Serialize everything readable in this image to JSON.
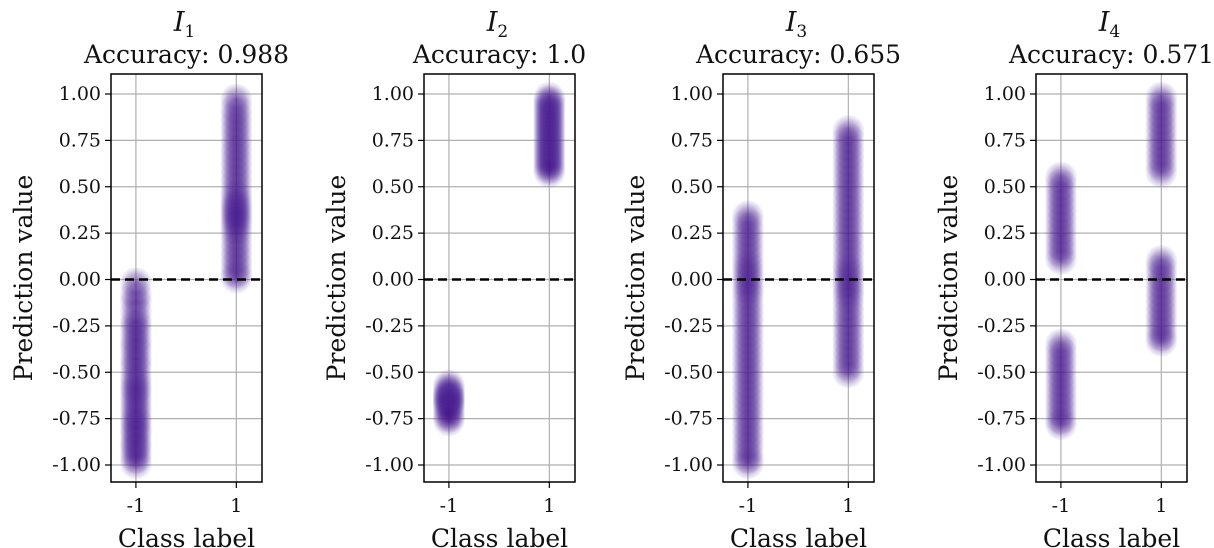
{
  "chart_data": [
    {
      "type": "scatter",
      "title": "I",
      "title_subscript": "1",
      "subtitle": "Accuracy: 0.988",
      "xlabel": "Class label",
      "ylabel": "Prediction value",
      "categories": [
        "-1",
        "1"
      ],
      "ylim": [
        -1.1,
        1.1
      ],
      "yticks": [
        1.0,
        0.75,
        0.5,
        0.25,
        0.0,
        -0.25,
        -0.5,
        -0.75,
        -1.0
      ],
      "ytick_labels": [
        "1.00",
        "0.75",
        "0.50",
        "0.25",
        "0.00",
        "-0.25",
        "-0.50",
        "-0.75",
        "-1.00"
      ],
      "threshold": 0.0,
      "grid": true,
      "series": [
        {
          "category": "-1",
          "values": [
            -0.02,
            -0.08,
            -0.12,
            -0.17,
            -0.22,
            -0.25,
            -0.28,
            -0.32,
            -0.35,
            -0.38,
            -0.42,
            -0.45,
            -0.48,
            -0.52,
            -0.55,
            -0.58,
            -0.6,
            -0.63,
            -0.66,
            -0.69,
            -0.72,
            -0.75,
            -0.77,
            -0.8,
            -0.82,
            -0.85,
            -0.88,
            -0.9,
            -0.93,
            -0.96,
            -0.99
          ]
        },
        {
          "category": "1",
          "values": [
            0.97,
            0.92,
            0.88,
            0.84,
            0.8,
            0.76,
            0.72,
            0.68,
            0.64,
            0.6,
            0.56,
            0.52,
            0.48,
            0.45,
            0.42,
            0.4,
            0.38,
            0.36,
            0.34,
            0.32,
            0.3,
            0.27,
            0.24,
            0.2,
            0.16,
            0.12,
            0.08,
            0.04,
            0.01
          ]
        }
      ]
    },
    {
      "type": "scatter",
      "title": "I",
      "title_subscript": "2",
      "subtitle": "Accuracy: 1.0",
      "xlabel": "Class label",
      "ylabel": "Prediction value",
      "categories": [
        "-1",
        "1"
      ],
      "ylim": [
        -1.1,
        1.1
      ],
      "yticks": [
        1.0,
        0.75,
        0.5,
        0.25,
        0.0,
        -0.25,
        -0.5,
        -0.75,
        -1.0
      ],
      "ytick_labels": [
        "1.00",
        "0.75",
        "0.50",
        "0.25",
        "0.00",
        "-0.25",
        "-0.50",
        "-0.75",
        "-1.00"
      ],
      "threshold": 0.0,
      "grid": true,
      "series": [
        {
          "category": "-1",
          "values": [
            -0.57,
            -0.59,
            -0.61,
            -0.62,
            -0.63,
            -0.64,
            -0.65,
            -0.66,
            -0.67,
            -0.68,
            -0.7,
            -0.72,
            -0.74,
            -0.76
          ]
        },
        {
          "category": "1",
          "values": [
            0.98,
            0.96,
            0.94,
            0.92,
            0.9,
            0.88,
            0.86,
            0.84,
            0.82,
            0.8,
            0.78,
            0.76,
            0.74,
            0.72,
            0.7,
            0.68,
            0.66,
            0.64,
            0.62,
            0.6,
            0.58
          ]
        }
      ]
    },
    {
      "type": "scatter",
      "title": "I",
      "title_subscript": "3",
      "subtitle": "Accuracy: 0.655",
      "xlabel": "Class label",
      "ylabel": "Prediction value",
      "categories": [
        "-1",
        "1"
      ],
      "ylim": [
        -1.1,
        1.1
      ],
      "yticks": [
        1.0,
        0.75,
        0.5,
        0.25,
        0.0,
        -0.25,
        -0.5,
        -0.75,
        -1.0
      ],
      "ytick_labels": [
        "1.00",
        "0.75",
        "0.50",
        "0.25",
        "0.00",
        "-0.25",
        "-0.50",
        "-0.75",
        "-1.00"
      ],
      "threshold": 0.0,
      "grid": true,
      "series": [
        {
          "category": "-1",
          "values": [
            0.34,
            0.3,
            0.26,
            0.22,
            0.18,
            0.14,
            0.1,
            0.07,
            0.04,
            0.01,
            -0.02,
            -0.05,
            -0.08,
            -0.12,
            -0.16,
            -0.2,
            -0.24,
            -0.28,
            -0.32,
            -0.36,
            -0.4,
            -0.44,
            -0.48,
            -0.52,
            -0.56,
            -0.6,
            -0.64,
            -0.68,
            -0.72,
            -0.76,
            -0.8,
            -0.84,
            -0.88,
            -0.92,
            -0.96,
            -0.99
          ]
        },
        {
          "category": "1",
          "values": [
            0.8,
            0.76,
            0.72,
            0.68,
            0.64,
            0.6,
            0.56,
            0.52,
            0.48,
            0.44,
            0.4,
            0.36,
            0.32,
            0.28,
            0.24,
            0.2,
            0.16,
            0.12,
            0.08,
            0.05,
            0.02,
            -0.01,
            -0.04,
            -0.07,
            -0.1,
            -0.14,
            -0.18,
            -0.22,
            -0.26,
            -0.3,
            -0.34,
            -0.38,
            -0.42,
            -0.46,
            -0.5
          ]
        }
      ]
    },
    {
      "type": "scatter",
      "title": "I",
      "title_subscript": "4",
      "subtitle": "Accuracy: 0.571",
      "xlabel": "Class label",
      "ylabel": "Prediction value",
      "categories": [
        "-1",
        "1"
      ],
      "ylim": [
        -1.1,
        1.1
      ],
      "yticks": [
        1.0,
        0.75,
        0.5,
        0.25,
        0.0,
        -0.25,
        -0.5,
        -0.75,
        -1.0
      ],
      "ytick_labels": [
        "1.00",
        "0.75",
        "0.50",
        "0.25",
        "0.00",
        "-0.25",
        "-0.50",
        "-0.75",
        "-1.00"
      ],
      "threshold": 0.0,
      "grid": true,
      "series": [
        {
          "category": "-1",
          "values": [
            0.55,
            0.51,
            0.47,
            0.43,
            0.39,
            0.35,
            0.31,
            0.27,
            0.23,
            0.19,
            0.15,
            0.11,
            -0.35,
            -0.39,
            -0.43,
            -0.47,
            -0.51,
            -0.55,
            -0.59,
            -0.63,
            -0.67,
            -0.71,
            -0.75,
            -0.78
          ]
        },
        {
          "category": "1",
          "values": [
            0.98,
            0.94,
            0.9,
            0.86,
            0.82,
            0.78,
            0.74,
            0.7,
            0.66,
            0.62,
            0.58,
            0.1,
            0.06,
            0.02,
            -0.02,
            -0.06,
            -0.1,
            -0.14,
            -0.18,
            -0.22,
            -0.26,
            -0.3,
            -0.33
          ]
        }
      ]
    }
  ],
  "colors": {
    "marker": "#3f0f86",
    "axis": "#000000",
    "grid": "#b0b0b0",
    "threshold": "#000000",
    "text": "#111111"
  }
}
